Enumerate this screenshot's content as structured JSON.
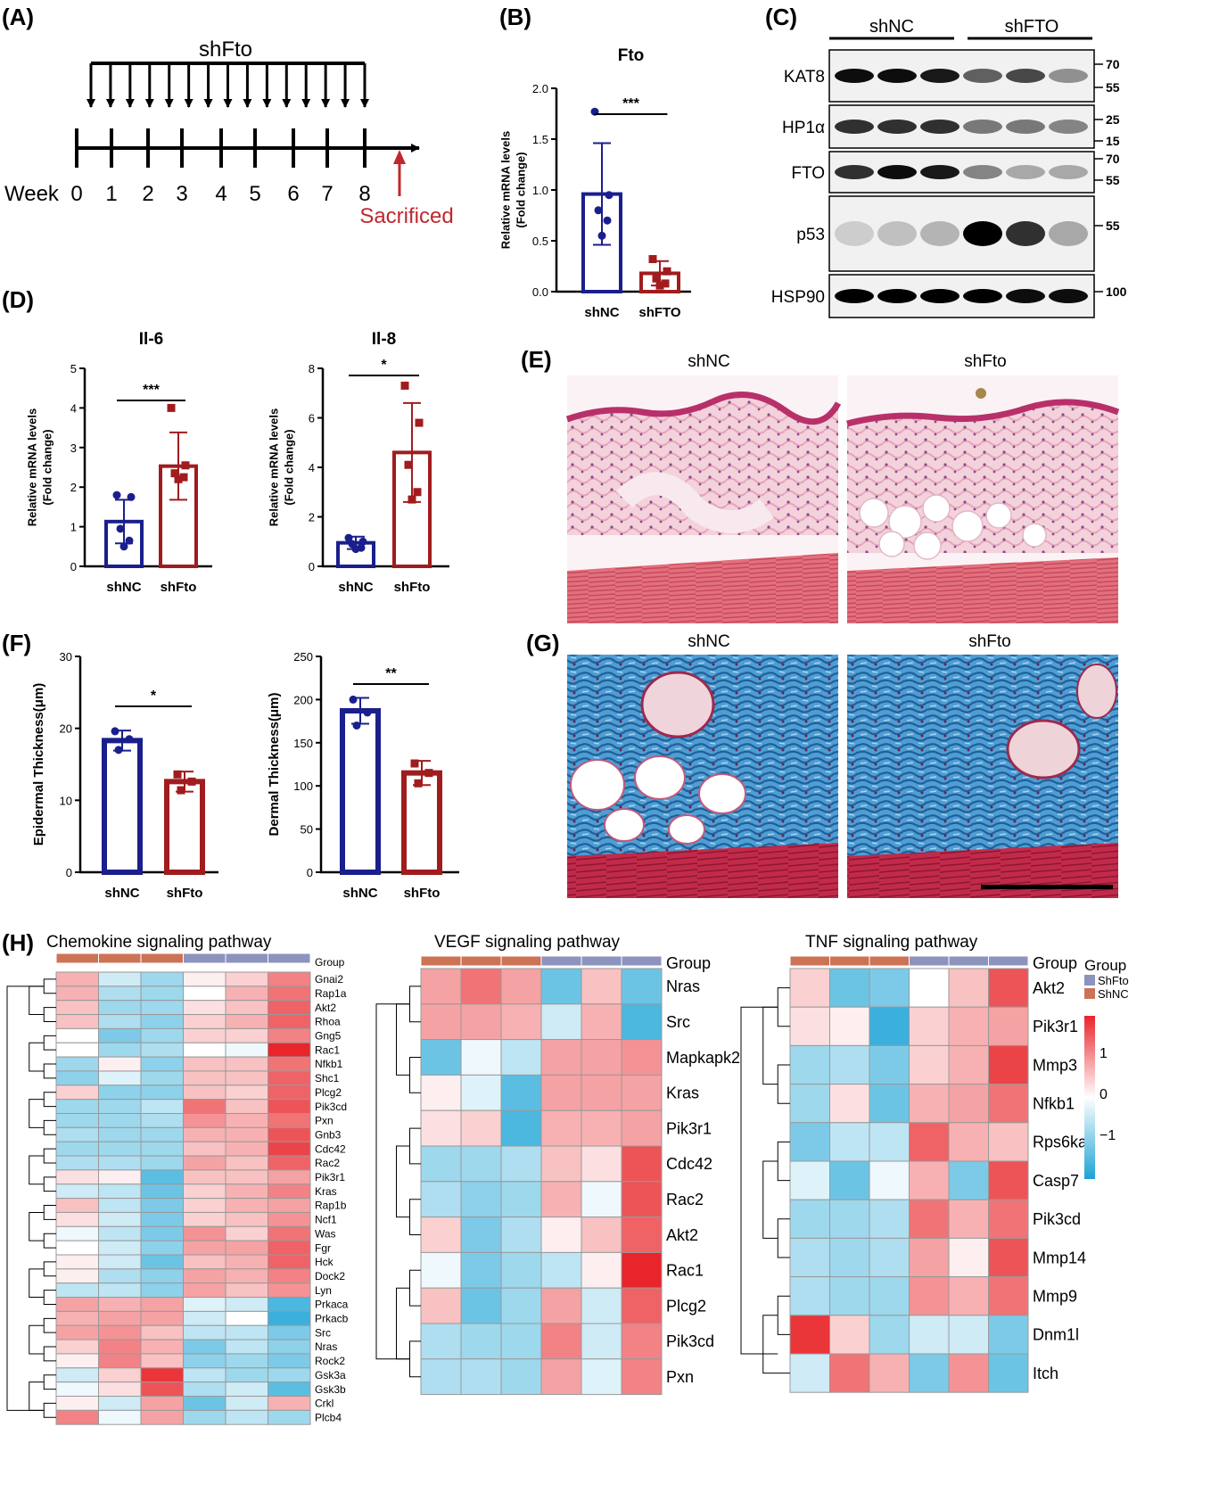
{
  "panels": {
    "A": {
      "label": "(A)",
      "treatment": "shFto",
      "week_label": "Week",
      "weeks": [
        "0",
        "1",
        "2",
        "3",
        "4",
        "5",
        "6",
        "7",
        "8"
      ],
      "end_label": "Sacrificed",
      "accent": "#c0272d"
    },
    "B": {
      "label": "(B)"
    },
    "C": {
      "label": "(C)",
      "group_labels": [
        "shNC",
        "shFTO"
      ],
      "rows": [
        {
          "protein": "KAT8",
          "markers": [
            "70",
            "55"
          ]
        },
        {
          "protein": "HP1α",
          "markers": [
            "25",
            "15"
          ]
        },
        {
          "protein": "FTO",
          "markers": [
            "70",
            "55"
          ]
        },
        {
          "protein": "p53",
          "markers": [
            "55"
          ]
        },
        {
          "protein": "HSP90",
          "markers": [
            "100"
          ]
        }
      ]
    },
    "D": {
      "label": "(D)"
    },
    "E": {
      "label": "(E)",
      "image_titles": [
        "shNC",
        "shFto"
      ]
    },
    "F": {
      "label": "(F)"
    },
    "G": {
      "label": "(G)",
      "image_titles": [
        "shNC",
        "shFto"
      ]
    },
    "H": {
      "label": "(H)"
    }
  },
  "colors": {
    "nc": "#1a1f8c",
    "kd": "#a01c1e",
    "heat_low": "#1ba3d6",
    "heat_mid": "#ffffff",
    "heat_high": "#e8252a",
    "group_nc": "#cc7355",
    "group_kd": "#8c93bd"
  },
  "chart_data": [
    {
      "id": "B",
      "type": "bar",
      "title": "Fto",
      "ylabel": "Relative mRNA levels\n(Fold change)",
      "categories": [
        "shNC",
        "shFTO"
      ],
      "values": [
        0.96,
        0.18
      ],
      "errors": [
        0.5,
        0.12
      ],
      "ylim": [
        0,
        2.0
      ],
      "yticks": [
        "0.0",
        "0.5",
        "1.0",
        "1.5",
        "2.0"
      ],
      "points": [
        [
          1.77,
          0.95,
          0.8,
          0.7,
          0.55
        ],
        [
          0.32,
          0.2,
          0.13,
          0.08,
          0.06
        ]
      ],
      "significance": "***"
    },
    {
      "id": "D1",
      "type": "bar",
      "title": "Il-6",
      "ylabel": "Relative mRNA levels\n(Fold change)",
      "categories": [
        "shNC",
        "shFto"
      ],
      "values": [
        1.13,
        2.53
      ],
      "errors": [
        0.55,
        0.85
      ],
      "ylim": [
        0,
        5
      ],
      "yticks": [
        "0",
        "1",
        "2",
        "3",
        "4",
        "5"
      ],
      "points": [
        [
          1.8,
          1.75,
          0.95,
          0.65,
          0.5
        ],
        [
          4.0,
          2.55,
          2.35,
          2.25,
          2.2
        ]
      ],
      "significance": "***"
    },
    {
      "id": "D2",
      "type": "bar",
      "title": "Il-8",
      "ylabel": "Relative mRNA levels\n(Fold change)",
      "categories": [
        "shNC",
        "shFto"
      ],
      "values": [
        0.95,
        4.6
      ],
      "errors": [
        0.25,
        2.0
      ],
      "ylim": [
        0,
        8
      ],
      "yticks": [
        "0",
        "2",
        "4",
        "6",
        "8"
      ],
      "points": [
        [
          1.15,
          1.0,
          0.9,
          0.75,
          0.7
        ],
        [
          7.3,
          5.8,
          4.1,
          3.0,
          2.7
        ]
      ],
      "significance": "*"
    },
    {
      "id": "F1",
      "type": "bar",
      "title": "",
      "ylabel": "Epidermal Thickness(μm)",
      "categories": [
        "shNC",
        "shFto"
      ],
      "values": [
        18.3,
        12.6
      ],
      "errors": [
        1.4,
        1.4
      ],
      "ylim": [
        0,
        30
      ],
      "yticks": [
        "0",
        "10",
        "20",
        "30"
      ],
      "points": [
        [
          19.6,
          18.5,
          17.0
        ],
        [
          13.6,
          12.6,
          11.4
        ]
      ],
      "significance": "*"
    },
    {
      "id": "F2",
      "type": "bar",
      "title": "",
      "ylabel": "Dermal Thickness(μm)",
      "categories": [
        "shNC",
        "shFto"
      ],
      "values": [
        187,
        115
      ],
      "errors": [
        15,
        14
      ],
      "ylim": [
        0,
        250
      ],
      "yticks": [
        "0",
        "50",
        "100",
        "150",
        "200",
        "250"
      ],
      "points": [
        [
          200,
          185,
          170
        ],
        [
          126,
          115,
          103
        ]
      ],
      "significance": "**"
    },
    {
      "id": "H1",
      "type": "heatmap",
      "title": "Chemokine signaling pathway",
      "group_label": "Group",
      "rows": [
        "Gnai2",
        "Rap1a",
        "Akt2",
        "Rhoa",
        "Gng5",
        "Rac1",
        "Nfkb1",
        "Shc1",
        "Plcg2",
        "Pik3cd",
        "Pxn",
        "Gnb3",
        "Cdc42",
        "Rac2",
        "Pik3r1",
        "Kras",
        "Rap1b",
        "Ncf1",
        "Was",
        "Fgr",
        "Hck",
        "Dock2",
        "Lyn",
        "Prkaca",
        "Prkacb",
        "Src",
        "Nras",
        "Rock2",
        "Gsk3a",
        "Gsk3b",
        "Crkl",
        "Plcb4"
      ],
      "values": [
        [
          0.5,
          -0.3,
          -0.6,
          0.1,
          0.3,
          0.8
        ],
        [
          0.5,
          -0.5,
          -0.6,
          0.0,
          0.5,
          0.9
        ],
        [
          0.4,
          -0.6,
          -0.6,
          0.2,
          0.4,
          1.0
        ],
        [
          0.4,
          -0.5,
          -0.7,
          0.3,
          0.5,
          1.0
        ],
        [
          0.0,
          -0.8,
          -0.6,
          0.3,
          0.3,
          0.8
        ],
        [
          0.0,
          -0.6,
          -0.5,
          0.0,
          -0.1,
          1.5
        ],
        [
          -0.6,
          0.1,
          -0.7,
          0.4,
          0.4,
          0.9
        ],
        [
          -0.7,
          -0.2,
          -0.6,
          0.4,
          0.4,
          1.0
        ],
        [
          0.3,
          -0.7,
          -0.7,
          0.4,
          0.3,
          1.0
        ],
        [
          -0.6,
          -0.6,
          -0.4,
          0.9,
          0.4,
          1.1
        ],
        [
          -0.6,
          -0.6,
          -0.5,
          0.7,
          0.5,
          0.9
        ],
        [
          -0.5,
          -0.6,
          -0.6,
          0.5,
          0.5,
          1.1
        ],
        [
          -0.6,
          -0.6,
          -0.6,
          0.4,
          0.5,
          1.2
        ],
        [
          -0.5,
          -0.5,
          -0.6,
          0.6,
          0.4,
          1.0
        ],
        [
          0.2,
          0.1,
          -1.0,
          0.4,
          0.4,
          0.6
        ],
        [
          -0.3,
          -0.4,
          -0.9,
          0.3,
          0.5,
          0.8
        ],
        [
          0.4,
          -0.4,
          -0.8,
          0.3,
          0.5,
          0.6
        ],
        [
          0.2,
          -0.3,
          -0.8,
          0.3,
          0.4,
          0.7
        ],
        [
          -0.1,
          -0.4,
          -0.8,
          0.7,
          0.3,
          0.9
        ],
        [
          0.0,
          -0.3,
          -0.7,
          0.6,
          0.6,
          1.0
        ],
        [
          0.1,
          -0.3,
          -0.9,
          0.4,
          0.5,
          1.0
        ],
        [
          0.1,
          -0.5,
          -0.7,
          0.6,
          0.5,
          0.8
        ],
        [
          -0.4,
          -0.4,
          -0.7,
          0.6,
          0.4,
          0.7
        ],
        [
          0.6,
          0.5,
          0.6,
          -0.2,
          -0.3,
          -1.1
        ],
        [
          0.5,
          0.6,
          0.6,
          -0.3,
          0.0,
          -1.2
        ],
        [
          0.6,
          0.7,
          0.4,
          -0.4,
          -0.4,
          -0.8
        ],
        [
          0.3,
          0.8,
          0.5,
          -0.8,
          -0.4,
          -0.7
        ],
        [
          0.1,
          0.8,
          0.4,
          -0.7,
          -0.6,
          -0.8
        ],
        [
          -0.3,
          0.3,
          1.3,
          -0.4,
          -0.6,
          -0.6
        ],
        [
          -0.1,
          0.2,
          1.1,
          -0.5,
          -0.3,
          -1.0
        ],
        [
          0.1,
          -0.3,
          0.6,
          -0.9,
          -0.3,
          0.5
        ],
        [
          0.8,
          -0.1,
          0.6,
          -0.6,
          -0.4,
          -0.6
        ]
      ]
    },
    {
      "id": "H2",
      "type": "heatmap",
      "title": "VEGF signaling pathway",
      "group_label": "Group",
      "rows": [
        "Nras",
        "Src",
        "Mapkapk2",
        "Kras",
        "Pik3r1",
        "Cdc42",
        "Rac2",
        "Akt2",
        "Rac1",
        "Plcg2",
        "Pik3cd",
        "Pxn"
      ],
      "values": [
        [
          0.6,
          0.9,
          0.6,
          -0.9,
          0.4,
          -0.9
        ],
        [
          0.6,
          0.6,
          0.5,
          -0.3,
          0.5,
          -1.1
        ],
        [
          -0.9,
          -0.1,
          -0.4,
          0.6,
          0.6,
          0.7
        ],
        [
          0.1,
          -0.2,
          -1.0,
          0.6,
          0.6,
          0.6
        ],
        [
          0.2,
          0.3,
          -1.1,
          0.5,
          0.5,
          0.6
        ],
        [
          -0.6,
          -0.6,
          -0.5,
          0.4,
          0.2,
          1.1
        ],
        [
          -0.5,
          -0.7,
          -0.6,
          0.5,
          -0.1,
          1.1
        ],
        [
          0.3,
          -0.8,
          -0.5,
          0.1,
          0.4,
          1.0
        ],
        [
          -0.1,
          -0.8,
          -0.6,
          -0.4,
          0.1,
          1.4
        ],
        [
          0.4,
          -0.9,
          -0.6,
          0.6,
          -0.3,
          1.0
        ],
        [
          -0.5,
          -0.6,
          -0.6,
          0.8,
          -0.3,
          0.8
        ],
        [
          -0.5,
          -0.5,
          -0.6,
          0.6,
          -0.2,
          0.8
        ]
      ]
    },
    {
      "id": "H3",
      "type": "heatmap",
      "title": "TNF signaling pathway",
      "group_label": "Group",
      "rows": [
        "Akt2",
        "Pik3r1",
        "Mmp3",
        "Nfkb1",
        "Rps6ka",
        "Casp7",
        "Pik3cd",
        "Mmp14",
        "Mmp9",
        "Dnm1l",
        "Itch"
      ],
      "values": [
        [
          0.3,
          -0.9,
          -0.8,
          0.0,
          0.4,
          1.1
        ],
        [
          0.2,
          0.1,
          -1.2,
          0.3,
          0.5,
          0.6
        ],
        [
          -0.6,
          -0.5,
          -0.8,
          0.3,
          0.5,
          1.2
        ],
        [
          -0.6,
          0.2,
          -0.9,
          0.5,
          0.6,
          0.9
        ],
        [
          -0.8,
          -0.4,
          -0.4,
          1.0,
          0.5,
          0.4
        ],
        [
          -0.2,
          -0.9,
          -0.1,
          0.5,
          -0.8,
          1.1
        ],
        [
          -0.6,
          -0.6,
          -0.5,
          0.9,
          0.5,
          0.9
        ],
        [
          -0.5,
          -0.6,
          -0.5,
          0.6,
          0.1,
          1.1
        ],
        [
          -0.5,
          -0.6,
          -0.6,
          0.7,
          0.5,
          0.9
        ],
        [
          1.3,
          0.3,
          -0.6,
          -0.3,
          -0.3,
          -0.8
        ],
        [
          -0.3,
          0.9,
          0.5,
          -0.8,
          0.7,
          -0.9
        ]
      ]
    }
  ],
  "legend": {
    "title": "Group",
    "entries": [
      "ShFto",
      "ShNC"
    ],
    "ticks": [
      "1",
      "0",
      "−1"
    ]
  }
}
